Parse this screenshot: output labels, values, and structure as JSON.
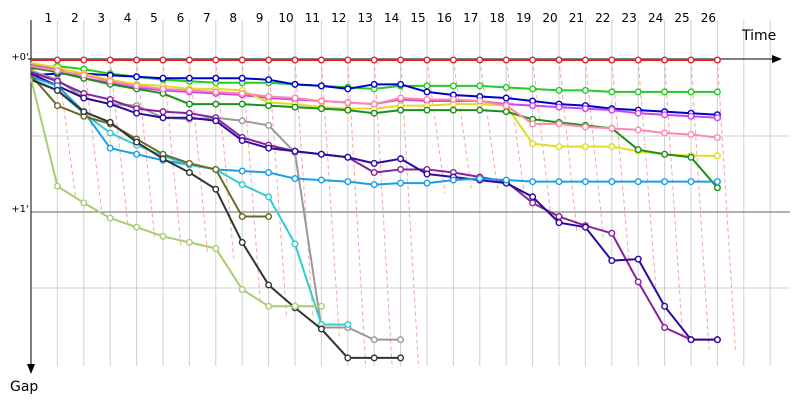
{
  "chart_data": {
    "type": "line",
    "title": "",
    "xlabel": "Time",
    "ylabel": "Gap",
    "x_ticks": [
      "1",
      "2",
      "3",
      "4",
      "5",
      "6",
      "7",
      "8",
      "9",
      "10",
      "11",
      "12",
      "13",
      "14",
      "15",
      "16",
      "17",
      "18",
      "19",
      "20",
      "21",
      "22",
      "23",
      "24",
      "25",
      "26"
    ],
    "y_ticks": [
      "+0'",
      "+1'"
    ],
    "y_reversed": true,
    "series": [
      {
        "color": "#e82020",
        "x": [
          0,
          1,
          2,
          3,
          4,
          5,
          6,
          7,
          8,
          9,
          10,
          11,
          12,
          13,
          14,
          15,
          16,
          17,
          18,
          19,
          20,
          21,
          22,
          23,
          24,
          25,
          26
        ],
        "y": [
          0.0,
          0.0,
          0.0,
          0.0,
          0.0,
          0.0,
          0.0,
          0.0,
          0.0,
          0.0,
          0.0,
          0.0,
          0.0,
          0.0,
          0.0,
          0.0,
          0.0,
          0.0,
          0.0,
          0.0,
          0.0,
          0.0,
          0.0,
          0.0,
          0.0,
          0.0,
          0.0
        ]
      },
      {
        "color": "#22cc22",
        "x": [
          0,
          1,
          2,
          3,
          4,
          5,
          6,
          7,
          8,
          9,
          10,
          11,
          12,
          13,
          14,
          15,
          16,
          17,
          18,
          19,
          20,
          21,
          22,
          23,
          24,
          25,
          26
        ],
        "y": [
          0.06,
          0.04,
          0.06,
          0.09,
          0.11,
          0.13,
          0.14,
          0.15,
          0.15,
          0.15,
          0.16,
          0.17,
          0.18,
          0.19,
          0.17,
          0.17,
          0.17,
          0.17,
          0.18,
          0.19,
          0.2,
          0.2,
          0.21,
          0.21,
          0.21,
          0.21,
          0.21
        ]
      },
      {
        "color": "#0000cc",
        "x": [
          0,
          1,
          2,
          3,
          4,
          5,
          6,
          7,
          8,
          9,
          10,
          11,
          12,
          13,
          14,
          15,
          16,
          17,
          18,
          19,
          20,
          21,
          22,
          23,
          24,
          25,
          26
        ],
        "y": [
          0.1,
          0.09,
          0.09,
          0.1,
          0.11,
          0.12,
          0.12,
          0.12,
          0.12,
          0.13,
          0.16,
          0.17,
          0.19,
          0.16,
          0.16,
          0.21,
          0.23,
          0.24,
          0.25,
          0.27,
          0.29,
          0.3,
          0.32,
          0.33,
          0.34,
          0.35,
          0.36
        ]
      },
      {
        "color": "#cc44ee",
        "x": [
          0,
          1,
          2,
          3,
          4,
          5,
          6,
          7,
          8,
          9,
          10,
          11,
          12,
          13,
          14,
          15,
          16,
          17,
          18,
          19,
          20,
          21,
          22,
          23,
          24,
          25,
          26
        ],
        "y": [
          0.03,
          0.06,
          0.12,
          0.15,
          0.18,
          0.2,
          0.21,
          0.22,
          0.23,
          0.25,
          0.26,
          0.27,
          0.28,
          0.29,
          0.26,
          0.27,
          0.27,
          0.27,
          0.29,
          0.3,
          0.31,
          0.32,
          0.33,
          0.35,
          0.36,
          0.37,
          0.38
        ]
      },
      {
        "color": "#dddd22",
        "x": [
          0,
          1,
          2,
          3,
          4,
          5,
          6,
          7,
          8,
          9,
          10,
          11,
          12,
          13,
          14,
          15,
          16,
          17,
          18,
          19,
          20,
          21,
          22,
          23,
          24,
          25,
          26
        ],
        "y": [
          0.02,
          0.05,
          0.09,
          0.13,
          0.16,
          0.17,
          0.19,
          0.19,
          0.2,
          0.28,
          0.29,
          0.31,
          0.32,
          0.32,
          0.3,
          0.3,
          0.29,
          0.29,
          0.3,
          0.55,
          0.57,
          0.57,
          0.57,
          0.6,
          0.62,
          0.63,
          0.63
        ]
      },
      {
        "color": "#1b8e1b",
        "x": [
          0,
          1,
          2,
          3,
          4,
          5,
          6,
          7,
          8,
          9,
          10,
          11,
          12,
          13,
          14,
          15,
          16,
          17,
          18,
          19,
          20,
          21,
          22,
          23,
          24,
          25,
          26
        ],
        "y": [
          0.05,
          0.08,
          0.12,
          0.16,
          0.19,
          0.22,
          0.29,
          0.29,
          0.29,
          0.3,
          0.31,
          0.32,
          0.33,
          0.35,
          0.33,
          0.33,
          0.33,
          0.33,
          0.34,
          0.39,
          0.41,
          0.43,
          0.45,
          0.59,
          0.62,
          0.64,
          0.84
        ]
      },
      {
        "color": "#ff88aa",
        "x": [
          0,
          1,
          2,
          3,
          4,
          5,
          6,
          7,
          8,
          9,
          10,
          11,
          12,
          13,
          14,
          15,
          16,
          17,
          18,
          19,
          20,
          21,
          22,
          23,
          24,
          25,
          26
        ],
        "y": [
          0.04,
          0.07,
          0.1,
          0.14,
          0.17,
          0.19,
          0.2,
          0.21,
          0.22,
          0.24,
          0.25,
          0.27,
          0.28,
          0.29,
          0.25,
          0.26,
          0.26,
          0.27,
          0.3,
          0.42,
          0.42,
          0.44,
          0.45,
          0.46,
          0.48,
          0.49,
          0.51
        ]
      },
      {
        "color": "#999999",
        "x": [
          0,
          1,
          2,
          3,
          4,
          5,
          6,
          7,
          8,
          9,
          10,
          11,
          12,
          13,
          14
        ],
        "y": [
          0.07,
          0.13,
          0.25,
          0.29,
          0.3,
          0.38,
          0.39,
          0.38,
          0.4,
          0.43,
          0.61,
          1.76,
          1.76,
          1.84,
          1.84
        ]
      },
      {
        "color": "#882299",
        "x": [
          0,
          1,
          2,
          3,
          4,
          5,
          6,
          7,
          8,
          9,
          10,
          11,
          12,
          13,
          14,
          15,
          16,
          17,
          18,
          19,
          20,
          21,
          22,
          23,
          24,
          25,
          26
        ],
        "y": [
          0.08,
          0.14,
          0.22,
          0.26,
          0.32,
          0.34,
          0.35,
          0.38,
          0.51,
          0.56,
          0.6,
          0.62,
          0.64,
          0.74,
          0.72,
          0.72,
          0.74,
          0.77,
          0.8,
          0.94,
          1.03,
          1.09,
          1.14,
          1.46,
          1.76,
          1.84,
          1.84
        ]
      },
      {
        "color": "#2c0aa0",
        "x": [
          0,
          1,
          2,
          3,
          4,
          5,
          6,
          7,
          8,
          9,
          10,
          11,
          12,
          13,
          14,
          15,
          16,
          17,
          18,
          19,
          20,
          21,
          22,
          23,
          24,
          25,
          26
        ],
        "y": [
          0.09,
          0.17,
          0.25,
          0.29,
          0.35,
          0.38,
          0.38,
          0.4,
          0.53,
          0.58,
          0.6,
          0.62,
          0.64,
          0.68,
          0.65,
          0.75,
          0.77,
          0.79,
          0.81,
          0.9,
          1.07,
          1.1,
          1.32,
          1.31,
          1.62,
          1.84,
          1.84
        ]
      },
      {
        "color": "#1b9ee8",
        "x": [
          0,
          1,
          2,
          3,
          4,
          5,
          6,
          7,
          8,
          9,
          10,
          11,
          12,
          13,
          14,
          15,
          16,
          17,
          18,
          19,
          20,
          21,
          22,
          23,
          24,
          25,
          26
        ],
        "y": [
          0.11,
          0.17,
          0.34,
          0.58,
          0.62,
          0.66,
          0.69,
          0.72,
          0.73,
          0.74,
          0.78,
          0.79,
          0.8,
          0.82,
          0.81,
          0.81,
          0.79,
          0.78,
          0.79,
          0.8,
          0.8,
          0.8,
          0.8,
          0.8,
          0.8,
          0.8,
          0.8
        ]
      },
      {
        "color": "#33cccc",
        "x": [
          0,
          1,
          2,
          3,
          4,
          5,
          6,
          7,
          8,
          9,
          10,
          11,
          12
        ],
        "y": [
          0.12,
          0.2,
          0.35,
          0.48,
          0.56,
          0.63,
          0.69,
          0.72,
          0.82,
          0.9,
          1.21,
          1.74,
          1.74
        ]
      },
      {
        "color": "#6a6a2a",
        "x": [
          0,
          1,
          2,
          3,
          4,
          5,
          6,
          7,
          8,
          9
        ],
        "y": [
          0.1,
          0.3,
          0.37,
          0.42,
          0.52,
          0.62,
          0.68,
          0.72,
          1.03,
          1.03
        ]
      },
      {
        "color": "#333333",
        "x": [
          0,
          1,
          2,
          3,
          4,
          5,
          6,
          7,
          8,
          9,
          10,
          11,
          12,
          13,
          14
        ],
        "y": [
          0.13,
          0.2,
          0.34,
          0.41,
          0.54,
          0.65,
          0.74,
          0.85,
          1.2,
          1.48,
          1.63,
          1.77,
          1.96,
          1.96,
          1.96
        ]
      },
      {
        "color": "#a8cc70",
        "x": [
          0,
          1,
          2,
          3,
          4,
          5,
          6,
          7,
          8,
          9,
          10,
          11
        ],
        "y": [
          0.12,
          0.83,
          0.94,
          1.04,
          1.1,
          1.16,
          1.2,
          1.24,
          1.51,
          1.62,
          1.62,
          1.62
        ]
      }
    ]
  }
}
